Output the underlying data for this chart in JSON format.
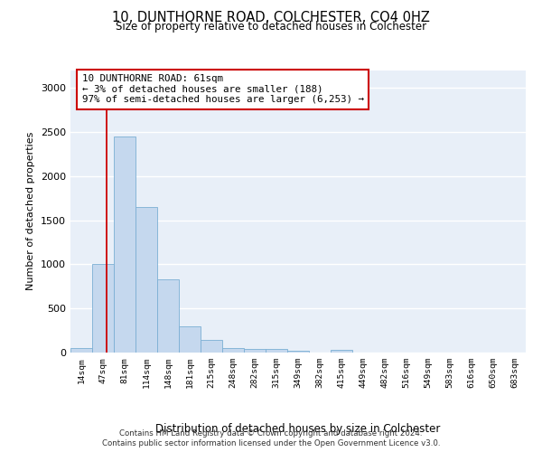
{
  "title": "10, DUNTHORNE ROAD, COLCHESTER, CO4 0HZ",
  "subtitle": "Size of property relative to detached houses in Colchester",
  "xlabel": "Distribution of detached houses by size in Colchester",
  "ylabel": "Number of detached properties",
  "bar_color": "#c5d8ee",
  "bar_edge_color": "#7bafd4",
  "background_color": "#e8eff8",
  "grid_color": "#ffffff",
  "categories": [
    "14sqm",
    "47sqm",
    "81sqm",
    "114sqm",
    "148sqm",
    "181sqm",
    "215sqm",
    "248sqm",
    "282sqm",
    "315sqm",
    "349sqm",
    "382sqm",
    "415sqm",
    "449sqm",
    "482sqm",
    "516sqm",
    "549sqm",
    "583sqm",
    "616sqm",
    "650sqm",
    "683sqm"
  ],
  "values": [
    55,
    1000,
    2450,
    1650,
    830,
    295,
    140,
    55,
    45,
    40,
    20,
    0,
    35,
    0,
    0,
    0,
    0,
    0,
    0,
    0,
    0
  ],
  "ylim": [
    0,
    3200
  ],
  "yticks": [
    0,
    500,
    1000,
    1500,
    2000,
    2500,
    3000
  ],
  "property_label": "10 DUNTHORNE ROAD: 61sqm",
  "annotation_line1": "← 3% of detached houses are smaller (188)",
  "annotation_line2": "97% of semi-detached houses are larger (6,253) →",
  "vline_x_index": 1.18,
  "footer1": "Contains HM Land Registry data © Crown copyright and database right 2024.",
  "footer2": "Contains public sector information licensed under the Open Government Licence v3.0."
}
